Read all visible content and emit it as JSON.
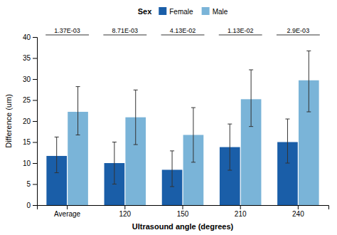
{
  "chart_data": {
    "type": "bar",
    "categories": [
      "Average",
      "120",
      "150",
      "210",
      "240"
    ],
    "series": [
      {
        "name": "Female",
        "color": "#1a5ea8",
        "values": [
          11.7,
          10.0,
          8.4,
          13.8,
          15.0
        ],
        "err_low": [
          4.0,
          5.0,
          4.0,
          5.5,
          5.0
        ],
        "err_high": [
          4.5,
          5.0,
          4.5,
          5.5,
          5.5
        ]
      },
      {
        "name": "Male",
        "color": "#7ab4d8",
        "values": [
          22.2,
          20.9,
          16.7,
          25.2,
          29.7
        ],
        "err_low": [
          5.5,
          6.5,
          6.5,
          6.5,
          7.5
        ],
        "err_high": [
          6.0,
          6.5,
          6.5,
          7.0,
          7.0
        ]
      }
    ],
    "annotations": [
      "1.37E-03",
      "8.71E-03",
      "4.13E-02",
      "1.13E-02",
      "2.9E-03"
    ],
    "xlabel": "Ultrasound angle (degrees)",
    "ylabel": "Difference (um)",
    "legend_title": "Sex",
    "ylim": [
      0,
      40
    ],
    "yticks": [
      0,
      5,
      10,
      15,
      20,
      25,
      30,
      35,
      40
    ],
    "grid": false,
    "legend": "top"
  }
}
